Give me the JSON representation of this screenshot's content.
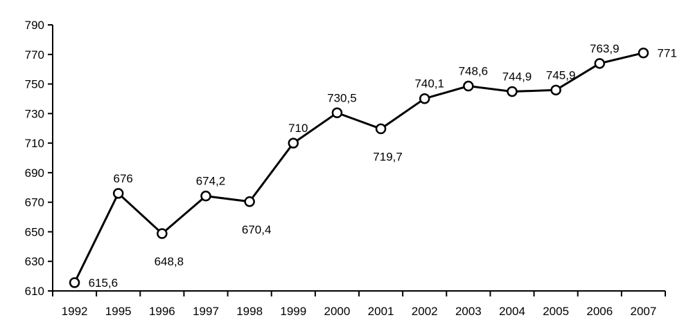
{
  "chart_data": {
    "type": "line",
    "title": "",
    "xlabel": "",
    "ylabel": "",
    "categories": [
      "1992",
      "1995",
      "1996",
      "1997",
      "1998",
      "1999",
      "2000",
      "2001",
      "2002",
      "2003",
      "2004",
      "2005",
      "2006",
      "2007"
    ],
    "series": [
      {
        "values": [
          615.6,
          676,
          648.8,
          674.2,
          670.4,
          710,
          730.5,
          719.7,
          740.1,
          748.6,
          744.9,
          745.9,
          763.9,
          771
        ],
        "labels": [
          "615,6",
          "676",
          "648,8",
          "674,2",
          "670,4",
          "710",
          "730,5",
          "719,7",
          "740,1",
          "748,6",
          "744,9",
          "745,9",
          "763,9",
          "771"
        ],
        "color": "#000000"
      }
    ],
    "ylim": [
      610,
      790
    ],
    "yticks": [
      610,
      630,
      650,
      670,
      690,
      710,
      730,
      750,
      770,
      790
    ],
    "grid": false,
    "legend": "none"
  }
}
